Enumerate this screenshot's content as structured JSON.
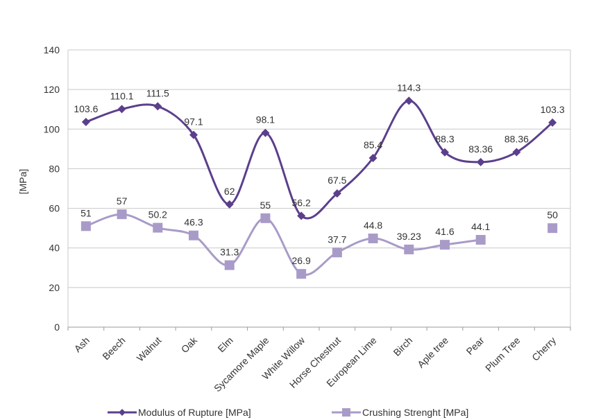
{
  "chart_data": {
    "type": "line",
    "categories": [
      "Ash",
      "Beech",
      "Walnut",
      "Oak",
      "Elm",
      "Sycamore Maple",
      "White Willow",
      "Horse Chestnut",
      "European Lime",
      "Birch",
      "Aple tree",
      "Pear",
      "Plum Tree",
      "Cherry"
    ],
    "ylabel": "[MPa]",
    "ylim": [
      0,
      140
    ],
    "yticks": [
      0,
      20,
      40,
      60,
      80,
      100,
      120,
      140
    ],
    "grid": true,
    "legend_position": "bottom",
    "series": [
      {
        "name": "Modulus of Rupture [MPa]",
        "color": "#5b3f8c",
        "marker": "diamond",
        "smooth": true,
        "values": [
          103.6,
          110.1,
          111.5,
          97.1,
          62,
          98.1,
          56.2,
          67.5,
          85.4,
          114.3,
          88.3,
          83.36,
          88.36,
          103.3
        ],
        "labels": [
          "103.6",
          "110.1",
          "111.5",
          "97.1",
          "62",
          "98.1",
          "56.2",
          "67.5",
          "85.4",
          "114.3",
          "88.3",
          "83.36",
          "88.36",
          "103.3"
        ]
      },
      {
        "name": "Crushing Strenght [MPa]",
        "color": "#a99bc8",
        "marker": "square",
        "smooth": true,
        "values": [
          51,
          57,
          50.2,
          46.3,
          31.3,
          55,
          26.9,
          37.7,
          44.8,
          39.23,
          41.6,
          44.1,
          null,
          50
        ],
        "labels": [
          "51",
          "57",
          "50.2",
          "46.3",
          "31.3",
          "55",
          "26.9",
          "37.7",
          "44.8",
          "39.23",
          "41.6",
          "44.1",
          "",
          "50"
        ]
      }
    ]
  }
}
